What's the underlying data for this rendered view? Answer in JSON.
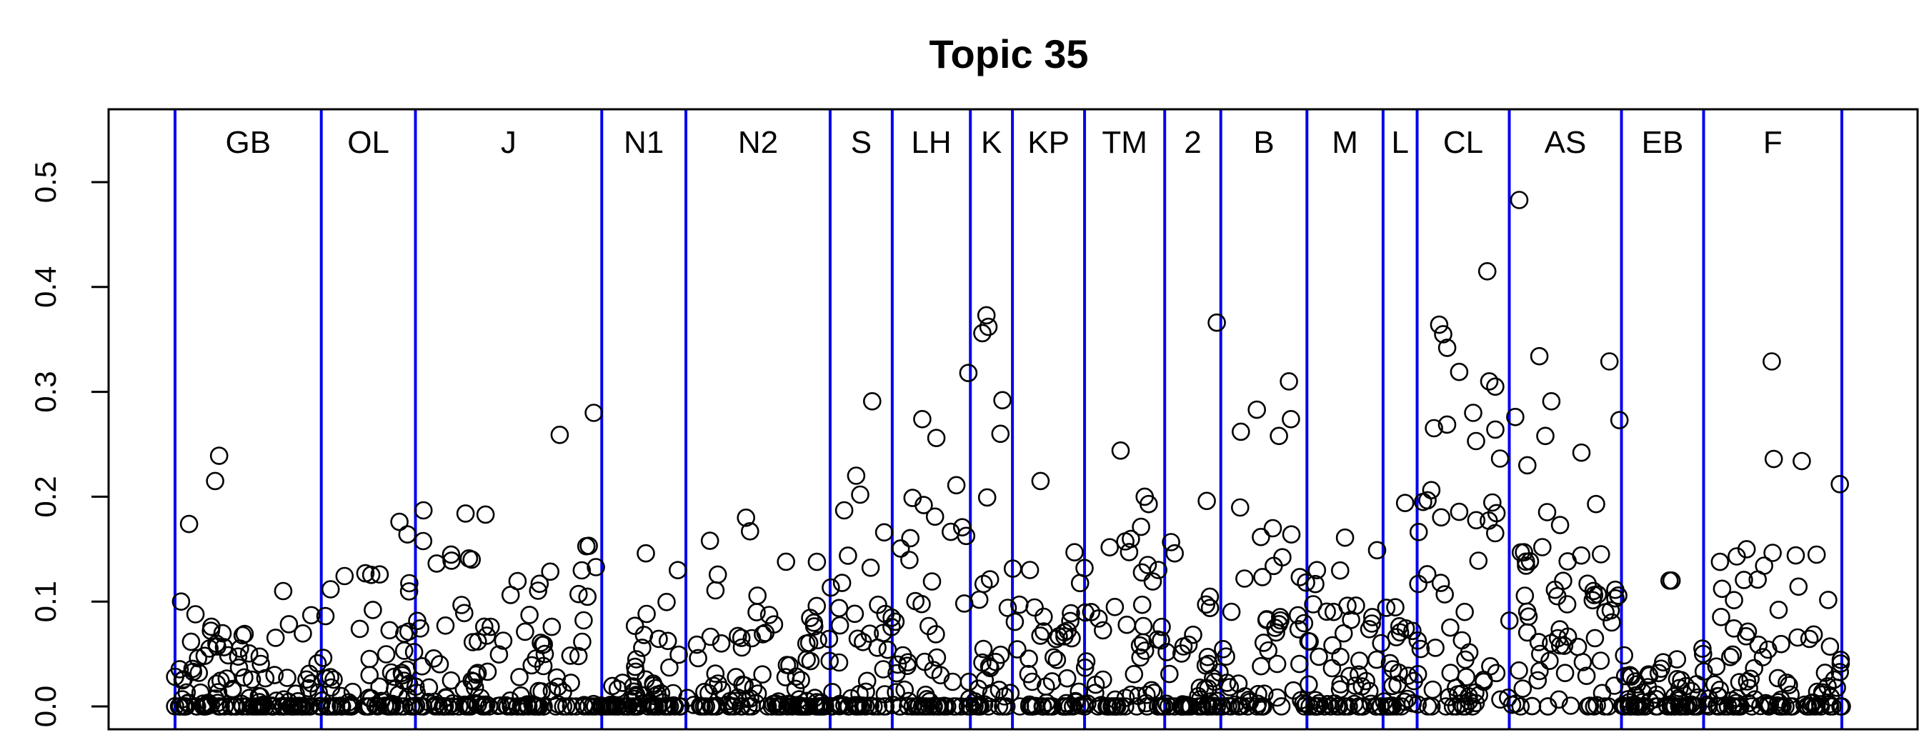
{
  "chart_data": {
    "type": "scatter",
    "title": "Topic 35",
    "xlabel": "",
    "ylabel": "",
    "ylim": [
      0.0,
      0.55
    ],
    "y_ticks": [
      "0.0",
      "0.1",
      "0.2",
      "0.3",
      "0.4",
      "0.5"
    ],
    "grid": false,
    "marker": "open-circle",
    "colors": {
      "points": "#000000",
      "dividers": "#0000ee"
    },
    "x_index_range": [
      1,
      1000
    ],
    "regions": [
      {
        "label": "GB",
        "start": 1,
        "end": 74
      },
      {
        "label": "OL",
        "start": 74,
        "end": 121
      },
      {
        "label": "J",
        "start": 121,
        "end": 214
      },
      {
        "label": "N1",
        "start": 214,
        "end": 256
      },
      {
        "label": "N2",
        "start": 256,
        "end": 328
      },
      {
        "label": "S",
        "start": 328,
        "end": 359
      },
      {
        "label": "LH",
        "start": 359,
        "end": 398
      },
      {
        "label": "K",
        "start": 398,
        "end": 419
      },
      {
        "label": "KP",
        "start": 419,
        "end": 455
      },
      {
        "label": "TM",
        "start": 455,
        "end": 495
      },
      {
        "label": "2",
        "start": 495,
        "end": 523
      },
      {
        "label": "B",
        "start": 523,
        "end": 566
      },
      {
        "label": "M",
        "start": 566,
        "end": 604
      },
      {
        "label": "L",
        "start": 604,
        "end": 621
      },
      {
        "label": "CL",
        "start": 621,
        "end": 667
      },
      {
        "label": "AS",
        "start": 667,
        "end": 723
      },
      {
        "label": "EB",
        "start": 723,
        "end": 764
      },
      {
        "label": "F",
        "start": 764,
        "end": 833
      }
    ],
    "highlight_points": [
      {
        "x": 4,
        "y": 0.1
      },
      {
        "x": 8,
        "y": 0.174
      },
      {
        "x": 21,
        "y": 0.215
      },
      {
        "x": 23,
        "y": 0.239
      },
      {
        "x": 55,
        "y": 0.11
      },
      {
        "x": 69,
        "y": 0.087
      },
      {
        "x": 96,
        "y": 0.127
      },
      {
        "x": 113,
        "y": 0.176
      },
      {
        "x": 117,
        "y": 0.164
      },
      {
        "x": 125,
        "y": 0.187
      },
      {
        "x": 146,
        "y": 0.184
      },
      {
        "x": 156,
        "y": 0.183
      },
      {
        "x": 193,
        "y": 0.259
      },
      {
        "x": 210,
        "y": 0.28
      },
      {
        "x": 236,
        "y": 0.146
      },
      {
        "x": 252,
        "y": 0.13
      },
      {
        "x": 268,
        "y": 0.158
      },
      {
        "x": 286,
        "y": 0.18
      },
      {
        "x": 288,
        "y": 0.167
      },
      {
        "x": 306,
        "y": 0.138
      },
      {
        "x": 335,
        "y": 0.187
      },
      {
        "x": 341,
        "y": 0.22
      },
      {
        "x": 343,
        "y": 0.202
      },
      {
        "x": 349,
        "y": 0.291
      },
      {
        "x": 355,
        "y": 0.166
      },
      {
        "x": 374,
        "y": 0.274
      },
      {
        "x": 381,
        "y": 0.256
      },
      {
        "x": 391,
        "y": 0.211
      },
      {
        "x": 397,
        "y": 0.318
      },
      {
        "x": 404,
        "y": 0.356
      },
      {
        "x": 406,
        "y": 0.373
      },
      {
        "x": 407,
        "y": 0.362
      },
      {
        "x": 413,
        "y": 0.26
      },
      {
        "x": 414,
        "y": 0.292
      },
      {
        "x": 433,
        "y": 0.215
      },
      {
        "x": 450,
        "y": 0.147
      },
      {
        "x": 473,
        "y": 0.244
      },
      {
        "x": 485,
        "y": 0.2
      },
      {
        "x": 487,
        "y": 0.193
      },
      {
        "x": 500,
        "y": 0.146
      },
      {
        "x": 516,
        "y": 0.196
      },
      {
        "x": 521,
        "y": 0.366
      },
      {
        "x": 533,
        "y": 0.262
      },
      {
        "x": 541,
        "y": 0.283
      },
      {
        "x": 552,
        "y": 0.258
      },
      {
        "x": 557,
        "y": 0.31
      },
      {
        "x": 558,
        "y": 0.274
      },
      {
        "x": 585,
        "y": 0.161
      },
      {
        "x": 601,
        "y": 0.149
      },
      {
        "x": 615,
        "y": 0.194
      },
      {
        "x": 624,
        "y": 0.195
      },
      {
        "x": 632,
        "y": 0.364
      },
      {
        "x": 634,
        "y": 0.355
      },
      {
        "x": 636,
        "y": 0.342
      },
      {
        "x": 642,
        "y": 0.319
      },
      {
        "x": 649,
        "y": 0.28
      },
      {
        "x": 656,
        "y": 0.415
      },
      {
        "x": 657,
        "y": 0.31
      },
      {
        "x": 660,
        "y": 0.305
      },
      {
        "x": 672,
        "y": 0.483
      },
      {
        "x": 670,
        "y": 0.276
      },
      {
        "x": 676,
        "y": 0.23
      },
      {
        "x": 682,
        "y": 0.334
      },
      {
        "x": 685,
        "y": 0.258
      },
      {
        "x": 688,
        "y": 0.291
      },
      {
        "x": 703,
        "y": 0.242
      },
      {
        "x": 717,
        "y": 0.329
      },
      {
        "x": 722,
        "y": 0.273
      },
      {
        "x": 747,
        "y": 0.12
      },
      {
        "x": 748,
        "y": 0.12
      },
      {
        "x": 791,
        "y": 0.121
      },
      {
        "x": 798,
        "y": 0.329
      },
      {
        "x": 799,
        "y": 0.236
      },
      {
        "x": 813,
        "y": 0.234
      },
      {
        "x": 810,
        "y": 0.144
      },
      {
        "x": 832,
        "y": 0.212
      }
    ],
    "background_series": {
      "description": "remaining documents in each region: mostly 0.0 with values up to about 0.15",
      "levels_per_region": [
        {
          "label": "GB",
          "zero_count": 50,
          "nonzero_max": 0.09
        },
        {
          "label": "OL",
          "zero_count": 25,
          "nonzero_max": 0.13
        },
        {
          "label": "J",
          "zero_count": 40,
          "nonzero_max": 0.16
        },
        {
          "label": "N1",
          "zero_count": 28,
          "nonzero_max": 0.11
        },
        {
          "label": "N2",
          "zero_count": 35,
          "nonzero_max": 0.14
        },
        {
          "label": "S",
          "zero_count": 12,
          "nonzero_max": 0.16
        },
        {
          "label": "LH",
          "zero_count": 18,
          "nonzero_max": 0.2
        },
        {
          "label": "K",
          "zero_count": 6,
          "nonzero_max": 0.2
        },
        {
          "label": "KP",
          "zero_count": 18,
          "nonzero_max": 0.14
        },
        {
          "label": "TM",
          "zero_count": 18,
          "nonzero_max": 0.18
        },
        {
          "label": "2",
          "zero_count": 14,
          "nonzero_max": 0.16
        },
        {
          "label": "B",
          "zero_count": 10,
          "nonzero_max": 0.2
        },
        {
          "label": "M",
          "zero_count": 20,
          "nonzero_max": 0.13
        },
        {
          "label": "L",
          "zero_count": 8,
          "nonzero_max": 0.15
        },
        {
          "label": "CL",
          "zero_count": 6,
          "nonzero_max": 0.27
        },
        {
          "label": "AS",
          "zero_count": 6,
          "nonzero_max": 0.22
        },
        {
          "label": "EB",
          "zero_count": 25,
          "nonzero_max": 0.07
        },
        {
          "label": "F",
          "zero_count": 30,
          "nonzero_max": 0.15
        }
      ]
    }
  }
}
